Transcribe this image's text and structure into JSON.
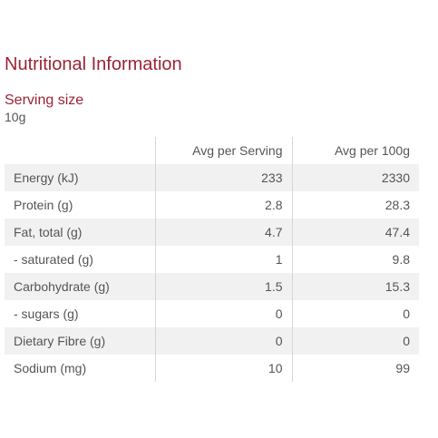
{
  "title": "Nutritional Information",
  "serving": {
    "label": "Serving size",
    "value": "10g"
  },
  "table": {
    "columns": [
      "",
      "Avg per Serving",
      "Avg per 100g"
    ],
    "rows": [
      {
        "name": "Energy (kJ)",
        "per_serving": "233",
        "per_100g": "2330"
      },
      {
        "name": "Protein (g)",
        "per_serving": "2.8",
        "per_100g": "28.3"
      },
      {
        "name": "Fat, total (g)",
        "per_serving": "4.7",
        "per_100g": "47.4"
      },
      {
        "name": "- saturated (g)",
        "per_serving": "1",
        "per_100g": "9.8"
      },
      {
        "name": "Carbohydrate (g)",
        "per_serving": "1.5",
        "per_100g": "15.3"
      },
      {
        "name": "- sugars (g)",
        "per_serving": "0",
        "per_100g": "0"
      },
      {
        "name": "Dietary Fibre (g)",
        "per_serving": "0",
        "per_100g": "0"
      },
      {
        "name": "Sodium (mg)",
        "per_serving": "10",
        "per_100g": "99"
      }
    ]
  },
  "colors": {
    "heading": "#9b2335",
    "text": "#555555",
    "row_shade": "#f1f1f1",
    "divider": "#d6d6d6"
  }
}
